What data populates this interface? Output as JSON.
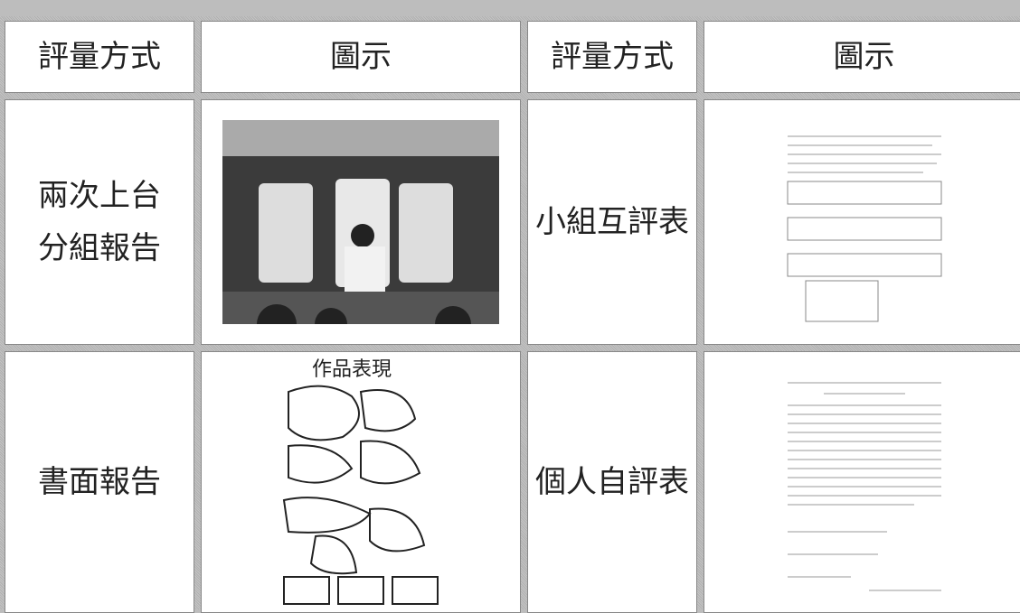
{
  "table": {
    "header": [
      "評量方式",
      "圖示",
      "評量方式",
      "圖示"
    ],
    "rows": [
      {
        "left_method": [
          "兩次上台",
          "分組報告"
        ],
        "right_method": "小組互評表"
      },
      {
        "left_method": [
          "書面報告"
        ],
        "right_method": "個人自評表",
        "poster_title": "作品表現"
      }
    ]
  }
}
